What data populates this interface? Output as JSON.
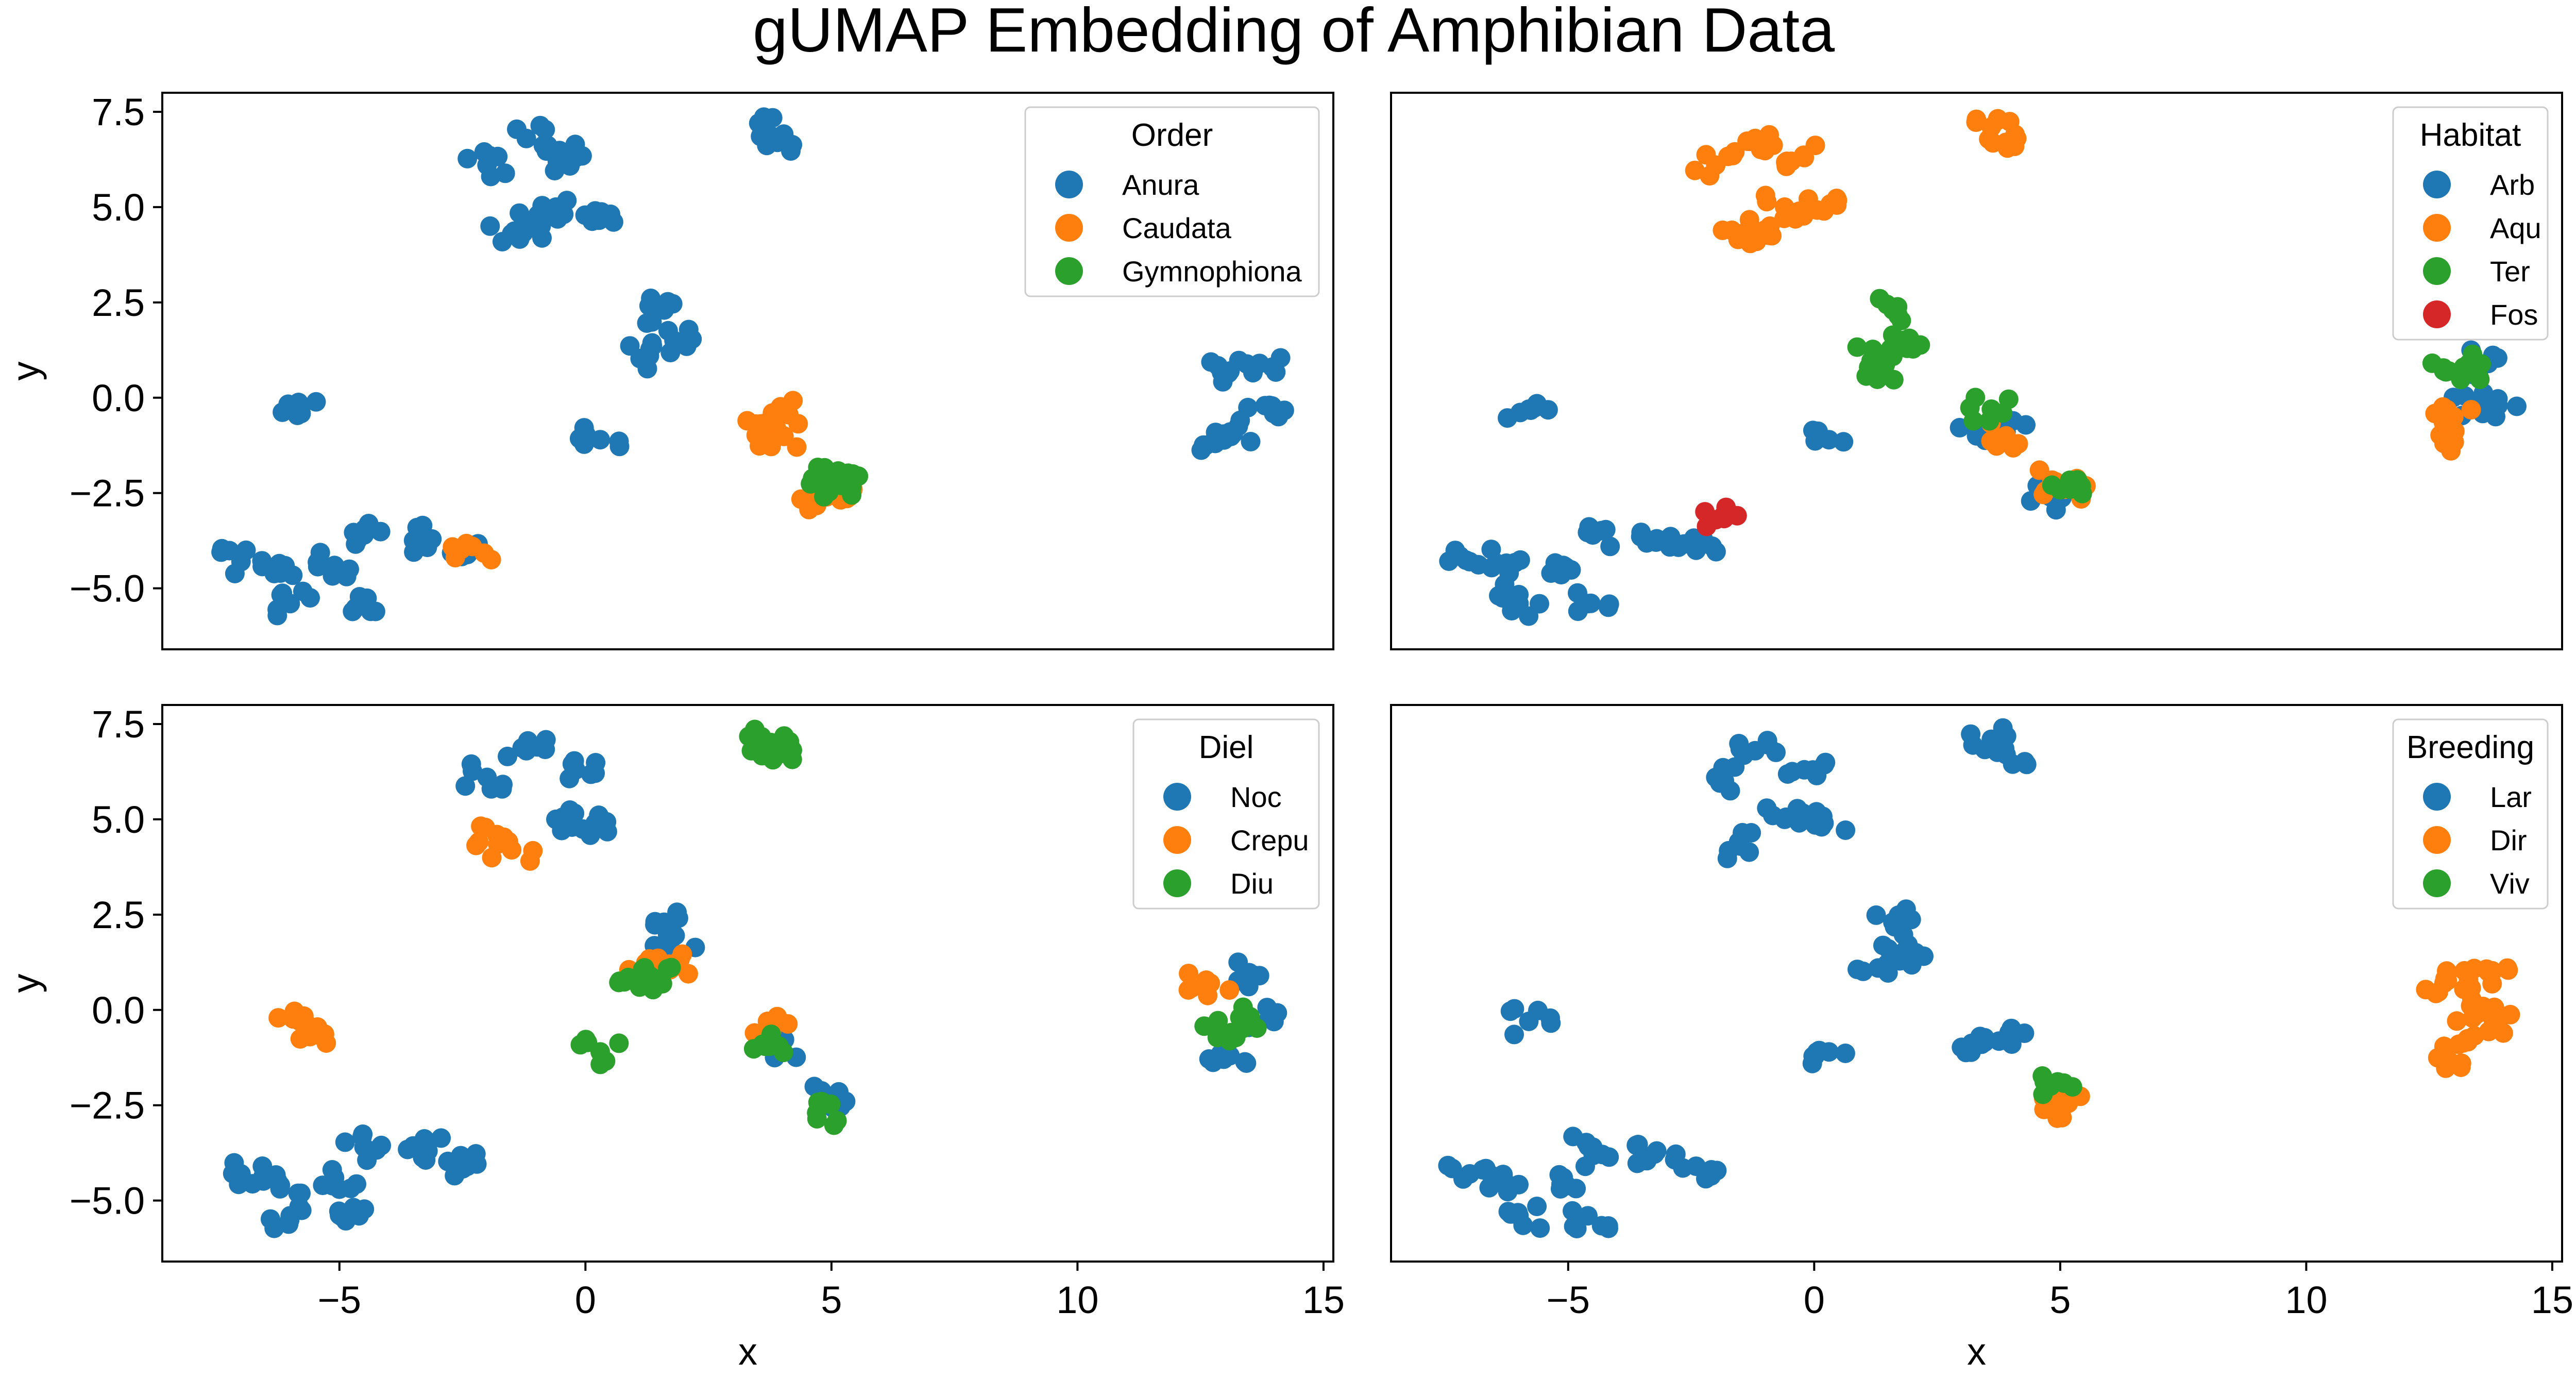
{
  "figure_title": "gUMAP Embedding of Amphibian Data",
  "chart_data": [
    {
      "type": "scatter",
      "xlim": [
        -8.6,
        15.2
      ],
      "ylim": [
        -6.6,
        8.0
      ],
      "xticks": [
        -5,
        0,
        5,
        10,
        15
      ],
      "xtick_labels": [
        "−5",
        "0",
        "5",
        "10",
        "15"
      ],
      "yticks": [
        -5.0,
        -2.5,
        0.0,
        2.5,
        5.0,
        7.5
      ],
      "ytick_labels": [
        "−5.0",
        "−2.5",
        "0.0",
        "2.5",
        "5.0",
        "7.5"
      ],
      "xlabel": "",
      "ylabel": "y",
      "show_xticks": false,
      "show_yticks": true,
      "legend": {
        "title": "Order",
        "position": "top-right"
      },
      "series": [
        {
          "name": "Anura",
          "color": "#1f77b4",
          "points": [
            [
              -7.0,
              -4.3
            ],
            [
              -6.2,
              -4.6
            ],
            [
              -5.1,
              -4.4
            ],
            [
              -4.5,
              -3.6
            ],
            [
              -3.2,
              -3.7
            ],
            [
              -2.4,
              -4.1
            ],
            [
              -6.0,
              -5.4
            ],
            [
              -4.6,
              -5.4
            ],
            [
              -5.8,
              -0.3
            ],
            [
              -2.0,
              6.1
            ],
            [
              -1.2,
              6.8
            ],
            [
              -0.2,
              6.3
            ],
            [
              -0.6,
              5.0
            ],
            [
              0.2,
              4.9
            ],
            [
              -1.5,
              4.3
            ],
            [
              -0.9,
              4.5
            ],
            [
              0.3,
              -1.1
            ],
            [
              1.3,
              1.1
            ],
            [
              1.6,
              2.3
            ],
            [
              1.8,
              1.5
            ],
            [
              3.6,
              7.1
            ],
            [
              3.9,
              6.7
            ],
            [
              13.1,
              0.7
            ],
            [
              13.7,
              0.9
            ],
            [
              13.9,
              -0.2
            ],
            [
              12.8,
              -1.2
            ],
            [
              13.1,
              -0.9
            ]
          ]
        },
        {
          "name": "Caudata",
          "color": "#ff7f0e",
          "points": [
            [
              3.8,
              -0.4
            ],
            [
              3.6,
              -0.9
            ],
            [
              3.9,
              -1.0
            ],
            [
              4.8,
              -2.5
            ],
            [
              5.0,
              -2.3
            ],
            [
              4.9,
              -2.6
            ],
            [
              -2.3,
              -3.9
            ]
          ]
        },
        {
          "name": "Gymnophiona",
          "color": "#2ca02c",
          "points": [
            [
              4.8,
              -2.1
            ],
            [
              5.1,
              -2.2
            ],
            [
              5.2,
              -2.3
            ]
          ]
        }
      ]
    },
    {
      "type": "scatter",
      "xlim": [
        -8.6,
        15.2
      ],
      "ylim": [
        -6.6,
        8.0
      ],
      "xticks": [
        -5,
        0,
        5,
        10,
        15
      ],
      "xtick_labels": [
        "−5",
        "0",
        "5",
        "10",
        "15"
      ],
      "yticks": [
        -5.0,
        -2.5,
        0.0,
        2.5,
        5.0,
        7.5
      ],
      "ytick_labels": [
        "−5.0",
        "−2.5",
        "0.0",
        "2.5",
        "5.0",
        "7.5"
      ],
      "xlabel": "",
      "ylabel": "",
      "show_xticks": false,
      "show_yticks": false,
      "legend": {
        "title": "Habitat",
        "position": "top-right"
      },
      "series": [
        {
          "name": "Arb",
          "color": "#1f77b4",
          "points": [
            [
              -7.0,
              -4.3
            ],
            [
              -6.2,
              -4.6
            ],
            [
              -5.1,
              -4.4
            ],
            [
              -4.5,
              -3.6
            ],
            [
              -3.2,
              -3.7
            ],
            [
              -2.4,
              -4.0
            ],
            [
              -6.0,
              -5.4
            ],
            [
              -4.6,
              -5.4
            ],
            [
              -5.8,
              -0.3
            ],
            [
              0.3,
              -1.1
            ],
            [
              3.3,
              -1.0
            ],
            [
              3.9,
              -0.9
            ],
            [
              4.8,
              -2.6
            ],
            [
              13.7,
              0.9
            ],
            [
              13.9,
              -0.2
            ],
            [
              13.4,
              -0.2
            ]
          ]
        },
        {
          "name": "Aqu",
          "color": "#ff7f0e",
          "points": [
            [
              -2.0,
              6.1
            ],
            [
              -1.2,
              6.8
            ],
            [
              -0.2,
              6.3
            ],
            [
              -0.6,
              5.0
            ],
            [
              0.2,
              4.9
            ],
            [
              -1.5,
              4.3
            ],
            [
              -0.9,
              4.5
            ],
            [
              3.6,
              7.1
            ],
            [
              3.9,
              6.7
            ],
            [
              3.9,
              -1.0
            ],
            [
              4.9,
              -2.2
            ],
            [
              5.1,
              -2.4
            ],
            [
              12.8,
              -1.2
            ],
            [
              13.0,
              -0.5
            ]
          ]
        },
        {
          "name": "Ter",
          "color": "#2ca02c",
          "points": [
            [
              1.3,
              1.1
            ],
            [
              1.6,
              2.3
            ],
            [
              1.8,
              1.5
            ],
            [
              1.2,
              0.8
            ],
            [
              3.6,
              -0.3
            ],
            [
              5.2,
              -2.4
            ],
            [
              12.9,
              0.7
            ],
            [
              13.2,
              0.8
            ]
          ]
        },
        {
          "name": "Fos",
          "color": "#d62728",
          "points": [
            [
              -2.0,
              -3.2
            ]
          ]
        }
      ]
    },
    {
      "type": "scatter",
      "xlim": [
        -8.6,
        15.2
      ],
      "ylim": [
        -6.6,
        8.0
      ],
      "xticks": [
        -5,
        0,
        5,
        10,
        15
      ],
      "xtick_labels": [
        "−5",
        "0",
        "5",
        "10",
        "15"
      ],
      "yticks": [
        -5.0,
        -2.5,
        0.0,
        2.5,
        5.0,
        7.5
      ],
      "ytick_labels": [
        "−5.0",
        "−2.5",
        "0.0",
        "2.5",
        "5.0",
        "7.5"
      ],
      "xlabel": "x",
      "ylabel": "y",
      "show_xticks": true,
      "show_yticks": true,
      "legend": {
        "title": "Diel",
        "position": "top-right"
      },
      "series": [
        {
          "name": "Noc",
          "color": "#1f77b4",
          "points": [
            [
              -7.0,
              -4.3
            ],
            [
              -6.2,
              -4.6
            ],
            [
              -5.1,
              -4.4
            ],
            [
              -4.5,
              -3.6
            ],
            [
              -3.2,
              -3.7
            ],
            [
              -2.4,
              -4.1
            ],
            [
              -6.0,
              -5.4
            ],
            [
              -4.6,
              -5.4
            ],
            [
              -2.0,
              6.1
            ],
            [
              -1.2,
              6.8
            ],
            [
              -0.2,
              6.3
            ],
            [
              -0.6,
              5.0
            ],
            [
              0.2,
              4.9
            ],
            [
              1.6,
              2.3
            ],
            [
              1.8,
              1.5
            ],
            [
              3.9,
              -0.9
            ],
            [
              5.0,
              -2.3
            ],
            [
              13.7,
              0.9
            ],
            [
              13.9,
              -0.2
            ],
            [
              13.1,
              -1.2
            ]
          ]
        },
        {
          "name": "Crepu",
          "color": "#ff7f0e",
          "points": [
            [
              -5.8,
              -0.3
            ],
            [
              -5.6,
              -0.7
            ],
            [
              -1.8,
              4.6
            ],
            [
              -1.5,
              4.2
            ],
            [
              1.3,
              1.2
            ],
            [
              1.7,
              1.2
            ],
            [
              3.7,
              -0.3
            ],
            [
              12.7,
              0.7
            ]
          ]
        },
        {
          "name": "Diu",
          "color": "#2ca02c",
          "points": [
            [
              3.6,
              7.1
            ],
            [
              3.9,
              6.7
            ],
            [
              4.0,
              7.0
            ],
            [
              0.3,
              -1.1
            ],
            [
              1.3,
              0.8
            ],
            [
              1.1,
              0.6
            ],
            [
              3.6,
              -0.9
            ],
            [
              4.7,
              -2.7
            ],
            [
              12.8,
              -0.5
            ],
            [
              13.3,
              -0.2
            ]
          ]
        }
      ]
    },
    {
      "type": "scatter",
      "xlim": [
        -8.6,
        15.2
      ],
      "ylim": [
        -6.6,
        8.0
      ],
      "xticks": [
        -5,
        0,
        5,
        10,
        15
      ],
      "xtick_labels": [
        "−5",
        "0",
        "5",
        "10",
        "15"
      ],
      "yticks": [
        -5.0,
        -2.5,
        0.0,
        2.5,
        5.0,
        7.5
      ],
      "ytick_labels": [
        "−5.0",
        "−2.5",
        "0.0",
        "2.5",
        "5.0",
        "7.5"
      ],
      "xlabel": "x",
      "ylabel": "",
      "show_xticks": true,
      "show_yticks": false,
      "legend": {
        "title": "Breeding",
        "position": "top-right"
      },
      "series": [
        {
          "name": "Lar",
          "color": "#1f77b4",
          "points": [
            [
              -7.0,
              -4.3
            ],
            [
              -6.2,
              -4.6
            ],
            [
              -5.1,
              -4.4
            ],
            [
              -4.5,
              -3.6
            ],
            [
              -3.2,
              -3.7
            ],
            [
              -2.4,
              -4.1
            ],
            [
              -6.0,
              -5.4
            ],
            [
              -4.6,
              -5.4
            ],
            [
              -5.8,
              -0.3
            ],
            [
              -2.0,
              6.1
            ],
            [
              -1.2,
              6.8
            ],
            [
              -0.2,
              6.3
            ],
            [
              -0.6,
              5.0
            ],
            [
              0.2,
              4.9
            ],
            [
              -1.5,
              4.3
            ],
            [
              0.3,
              -1.1
            ],
            [
              1.3,
              1.1
            ],
            [
              1.6,
              2.3
            ],
            [
              1.8,
              1.5
            ],
            [
              3.6,
              7.1
            ],
            [
              3.9,
              6.7
            ],
            [
              3.4,
              -0.9
            ],
            [
              3.9,
              -0.8
            ]
          ]
        },
        {
          "name": "Dir",
          "color": "#ff7f0e",
          "points": [
            [
              4.8,
              -2.6
            ],
            [
              5.1,
              -2.3
            ],
            [
              12.8,
              0.7
            ],
            [
              13.3,
              0.8
            ],
            [
              13.7,
              1.0
            ],
            [
              13.9,
              -0.3
            ],
            [
              12.8,
              -1.2
            ],
            [
              13.1,
              -0.9
            ],
            [
              13.5,
              0.0
            ]
          ]
        },
        {
          "name": "Viv",
          "color": "#2ca02c",
          "points": [
            [
              4.8,
              -2.0
            ]
          ]
        }
      ]
    }
  ]
}
